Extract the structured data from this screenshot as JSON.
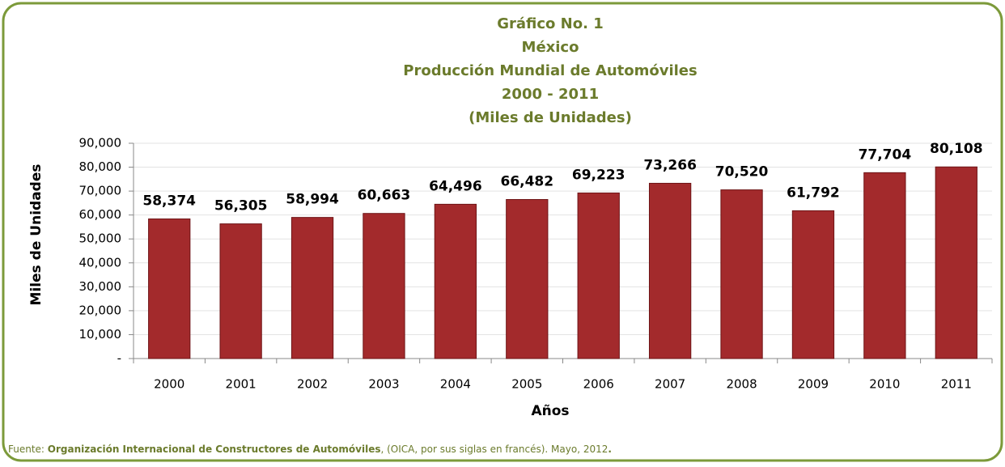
{
  "chart_data": {
    "type": "bar",
    "title": [
      "Gráfico No. 1",
      "México",
      "Producción Mundial de Automóviles",
      "2000 - 2011",
      "(Miles de Unidades)"
    ],
    "y_label": "Miles de Unidades",
    "x_label": "Años",
    "categories": [
      "2000",
      "2001",
      "2002",
      "2003",
      "2004",
      "2005",
      "2006",
      "2007",
      "2008",
      "2009",
      "2010",
      "2011"
    ],
    "values": [
      58374,
      56305,
      58994,
      60663,
      64496,
      66482,
      69223,
      73266,
      70520,
      61792,
      77704,
      80108
    ],
    "value_labels": [
      "58,374",
      "56,305",
      "58,994",
      "60,663",
      "64,496",
      "66,482",
      "69,223",
      "73,266",
      "70,520",
      "61,792",
      "77,704",
      "80,108"
    ],
    "color": "#a32a2c",
    "ylim": [
      0,
      90000
    ],
    "yticks": [
      {
        "value": 0,
        "label": "-"
      },
      {
        "value": 10000,
        "label": "10,000"
      },
      {
        "value": 20000,
        "label": "20,000"
      },
      {
        "value": 30000,
        "label": "30,000"
      },
      {
        "value": 40000,
        "label": "40,000"
      },
      {
        "value": 50000,
        "label": "50,000"
      },
      {
        "value": 60000,
        "label": "60,000"
      },
      {
        "value": 70000,
        "label": "70,000"
      },
      {
        "value": 80000,
        "label": "80,000"
      },
      {
        "value": 90000,
        "label": "90,000"
      }
    ],
    "grid": true,
    "source": [
      "Fuente: ",
      "Organización Internacional de Constructores de Automóviles",
      ", (OICA, por sus siglas en francés). Mayo, 2012",
      "."
    ]
  }
}
